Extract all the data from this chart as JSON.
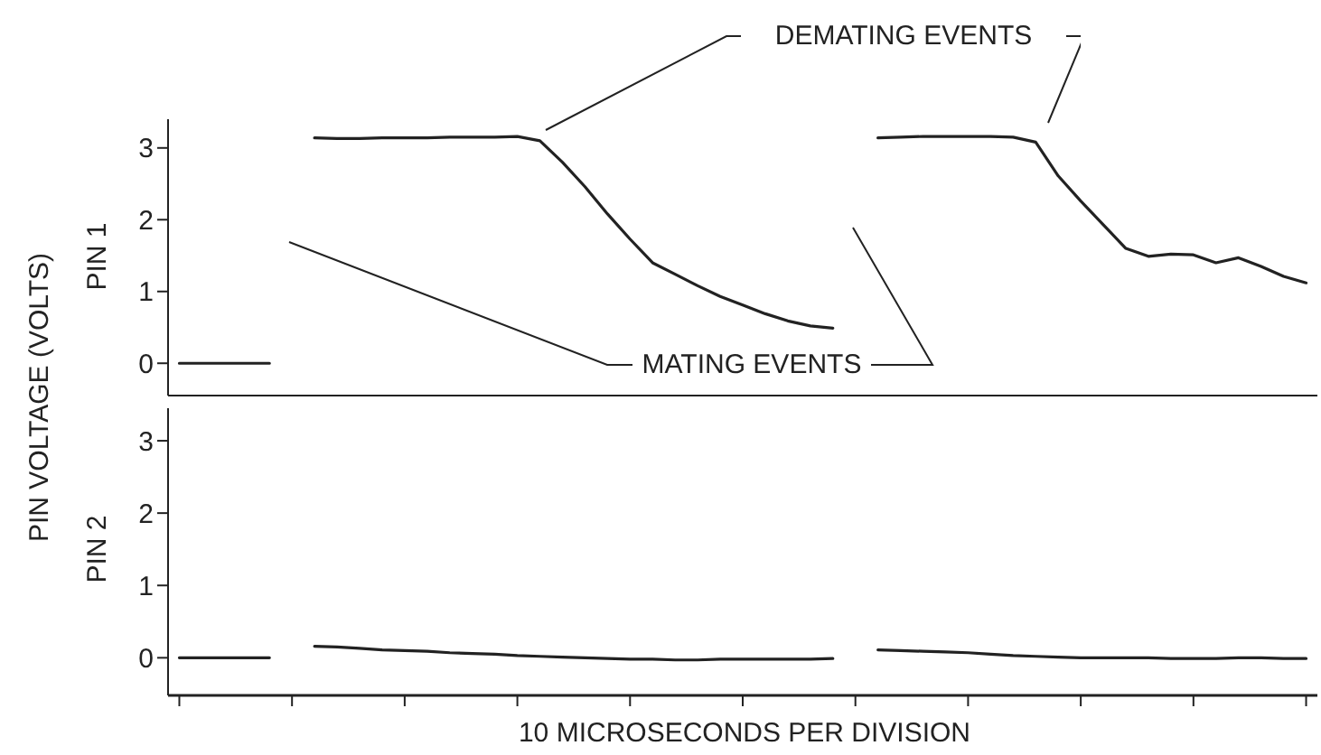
{
  "chart_data": [
    {
      "type": "line",
      "ylabel": "PIN 1",
      "ylim": [
        -0.45,
        3.4
      ],
      "yticks": [
        0,
        1,
        2,
        3
      ],
      "tick_labels": "y",
      "grid": false,
      "marker": "none",
      "line_style": "solid",
      "color": "#222222",
      "annotations": [
        "DEMATING EVENTS",
        "MATING EVENTS"
      ],
      "categories": [
        null,
        null,
        null,
        null,
        null,
        null,
        null,
        null,
        null,
        null,
        null,
        null,
        null,
        null,
        null,
        null,
        null,
        null,
        null,
        null,
        null,
        null,
        null,
        null,
        null,
        null,
        null,
        null,
        null,
        null,
        null,
        null,
        null,
        null,
        null,
        null,
        null,
        null,
        null,
        null,
        null,
        null,
        null,
        null,
        null,
        null,
        null,
        null,
        null,
        null,
        null
      ],
      "values": [
        0,
        0,
        0,
        0,
        0,
        null,
        3.14,
        3.13,
        3.13,
        3.14,
        3.14,
        3.14,
        3.15,
        3.15,
        3.15,
        3.16,
        3.1,
        2.8,
        2.46,
        2.08,
        1.73,
        1.4,
        1.24,
        1.08,
        0.93,
        0.81,
        0.69,
        0.59,
        0.52,
        0.49,
        null,
        3.14,
        3.15,
        3.16,
        3.16,
        3.16,
        3.16,
        3.15,
        3.08,
        2.61,
        2.26,
        1.93,
        1.6,
        1.49,
        1.52,
        1.51,
        1.4,
        1.47,
        1.35,
        1.21,
        1.12
      ]
    },
    {
      "type": "line",
      "ylabel": "PIN 2",
      "xlabel": "10  MICROSECONDS PER DIVISION",
      "ylim": [
        -0.52,
        3.45
      ],
      "yticks": [
        0,
        1,
        2,
        3
      ],
      "grid": false,
      "marker": "none",
      "line_style": "solid",
      "color": "#222222",
      "annotations": [
        "PIN VOLTAGE (VOLTS)"
      ],
      "categories": [
        null,
        null,
        null,
        null,
        null,
        null,
        null,
        null,
        null,
        null,
        null,
        null,
        null,
        null,
        null,
        null,
        null,
        null,
        null,
        null,
        null,
        null,
        null,
        null,
        null,
        null,
        null,
        null,
        null,
        null,
        null,
        null,
        null,
        null,
        null,
        null,
        null,
        null,
        null,
        null,
        null,
        null,
        null,
        null,
        null,
        null,
        null,
        null,
        null,
        null,
        null
      ],
      "values": [
        0,
        0,
        0,
        0,
        0,
        null,
        0.16,
        0.15,
        0.13,
        0.11,
        0.1,
        0.09,
        0.07,
        0.06,
        0.05,
        0.03,
        0.02,
        0.01,
        0,
        -0.01,
        -0.02,
        -0.02,
        -0.03,
        -0.03,
        -0.02,
        -0.02,
        -0.02,
        -0.02,
        -0.02,
        -0.01,
        null,
        0.11,
        0.1,
        0.09,
        0.08,
        0.07,
        0.05,
        0.03,
        0.02,
        0.01,
        0,
        0,
        0,
        0,
        -0.01,
        -0.01,
        -0.01,
        0,
        0,
        -0.01,
        -0.01
      ]
    }
  ]
}
